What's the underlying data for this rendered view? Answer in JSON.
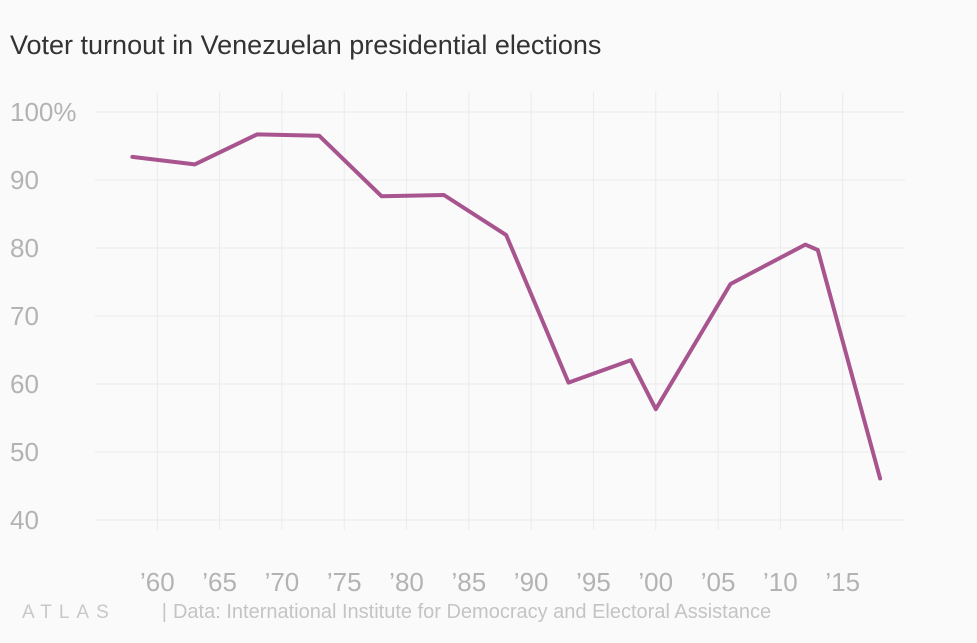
{
  "chart_data": {
    "type": "line",
    "title": "Voter turnout in Venezuelan presidential elections",
    "xlabel": "",
    "ylabel": "",
    "ylim": [
      40,
      100
    ],
    "xlim": [
      1955,
      2020
    ],
    "yticks": [
      100,
      90,
      80,
      70,
      60,
      50,
      40
    ],
    "ytick_labels": [
      "100%",
      "90",
      "80",
      "70",
      "60",
      "50",
      "40"
    ],
    "xticks": [
      1960,
      1965,
      1970,
      1975,
      1980,
      1985,
      1990,
      1995,
      2000,
      2005,
      2010,
      2015
    ],
    "xtick_labels": [
      "’60",
      "’65",
      "’70",
      "’75",
      "’80",
      "’85",
      "’90",
      "’95",
      "’00",
      "’05",
      "’10",
      "’15"
    ],
    "grid": true,
    "series": [
      {
        "name": "Voter turnout",
        "color": "#a8548e",
        "x": [
          1958,
          1963,
          1968,
          1973,
          1978,
          1983,
          1988,
          1993,
          1998,
          2000,
          2006,
          2012,
          2013,
          2018
        ],
        "values": [
          93.4,
          92.3,
          96.7,
          96.5,
          87.6,
          87.8,
          81.9,
          60.2,
          63.5,
          56.3,
          74.7,
          80.5,
          79.7,
          46.1
        ]
      }
    ]
  },
  "footer": {
    "logo": "ATLAS",
    "separator": "|",
    "source": "Data: International Institute for Democracy and Electoral Assistance"
  }
}
